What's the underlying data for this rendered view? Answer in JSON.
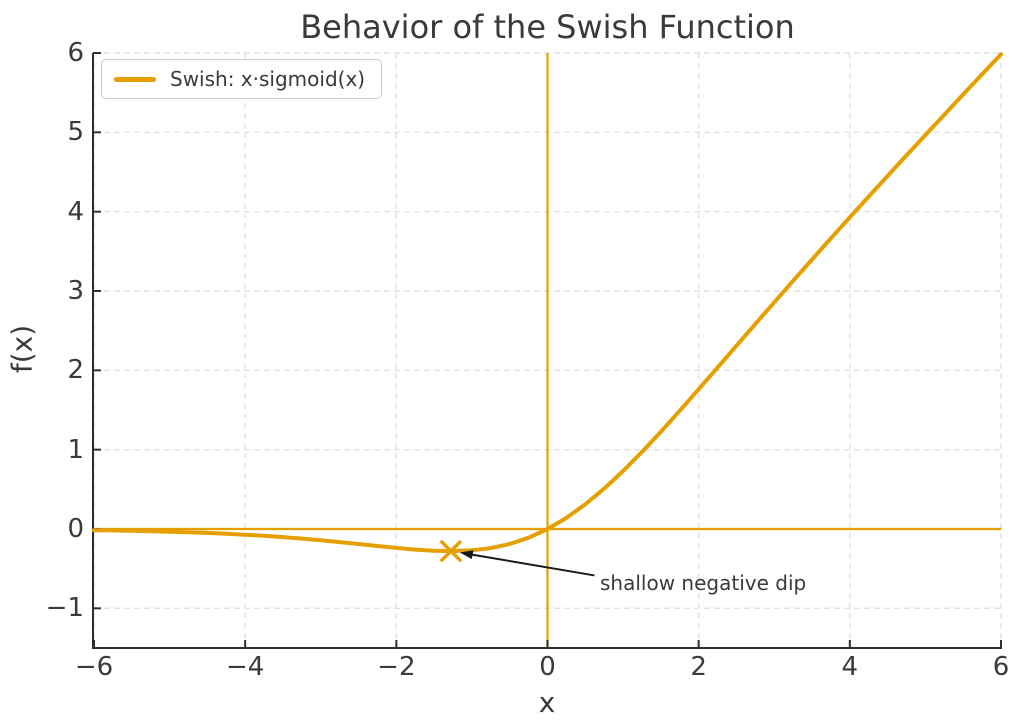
{
  "chart_data": {
    "type": "line",
    "title": "Behavior of the Swish Function",
    "xlabel": "x",
    "ylabel": "f(x)",
    "xlim": [
      -6,
      6
    ],
    "ylim": [
      -1.5,
      6
    ],
    "grid": "dashed",
    "legend_position": "upper-left",
    "xticks": {
      "values": [
        -6,
        -4,
        -2,
        0,
        2,
        4,
        6
      ],
      "labels": [
        "−6",
        "−4",
        "−2",
        "0",
        "2",
        "4",
        "6"
      ]
    },
    "yticks": {
      "values": [
        -1,
        0,
        1,
        2,
        3,
        4,
        5,
        6
      ],
      "labels": [
        "−1",
        "0",
        "1",
        "2",
        "3",
        "4",
        "5",
        "6"
      ]
    },
    "series": [
      {
        "name": "Swish: x·sigmoid(x)",
        "color": "#E69F00",
        "linewidth": 4,
        "x": [
          -6,
          -5.75,
          -5.5,
          -5.25,
          -5,
          -4.75,
          -4.5,
          -4.25,
          -4,
          -3.75,
          -3.5,
          -3.25,
          -3,
          -2.75,
          -2.5,
          -2.25,
          -2,
          -1.75,
          -1.5,
          -1.25,
          -1,
          -0.75,
          -0.5,
          -0.25,
          0,
          0.25,
          0.5,
          0.75,
          1,
          1.25,
          1.5,
          1.75,
          2,
          2.25,
          2.5,
          2.75,
          3,
          3.25,
          3.5,
          3.75,
          4,
          4.25,
          4.5,
          4.75,
          5,
          5.25,
          5.5,
          5.75,
          6
        ],
        "y": [
          -0.0148,
          -0.0182,
          -0.0224,
          -0.0274,
          -0.0335,
          -0.0407,
          -0.0494,
          -0.0598,
          -0.0719,
          -0.0862,
          -0.1026,
          -0.1213,
          -0.1423,
          -0.1652,
          -0.1896,
          -0.2145,
          -0.2384,
          -0.2591,
          -0.2736,
          -0.2784,
          -0.2689,
          -0.2406,
          -0.1888,
          -0.1095,
          0,
          0.1405,
          0.3112,
          0.5094,
          0.7311,
          0.9716,
          1.2264,
          1.4909,
          1.7616,
          2.0355,
          2.3104,
          2.5848,
          2.8577,
          3.1287,
          3.3974,
          3.6638,
          3.9281,
          4.1902,
          4.4506,
          4.7093,
          4.9665,
          5.2226,
          5.4776,
          5.7318,
          5.9852
        ]
      }
    ],
    "reference_lines": [
      {
        "axis": "vertical",
        "value": 0,
        "color": "#E69F00",
        "linewidth": 2.2
      },
      {
        "axis": "horizontal",
        "value": 0,
        "color": "#E69F00",
        "linewidth": 2.2
      }
    ],
    "markers": [
      {
        "x": -1.278,
        "y": -0.278,
        "style": "x",
        "color": "#E69F00",
        "size": 9,
        "meaning": "minimum of swish"
      }
    ],
    "annotations": [
      {
        "text": "shallow negative dip",
        "xy": [
          -1.278,
          -0.278
        ],
        "xytext": [
          0.7,
          -0.56
        ],
        "arrow_color": "#1a1a1a"
      }
    ],
    "colors": {
      "curve": "#E69F00",
      "grid": "#e2e2e2",
      "spine": "#2e2e2e",
      "text": "#3a3a3a",
      "background": "#ffffff"
    }
  }
}
